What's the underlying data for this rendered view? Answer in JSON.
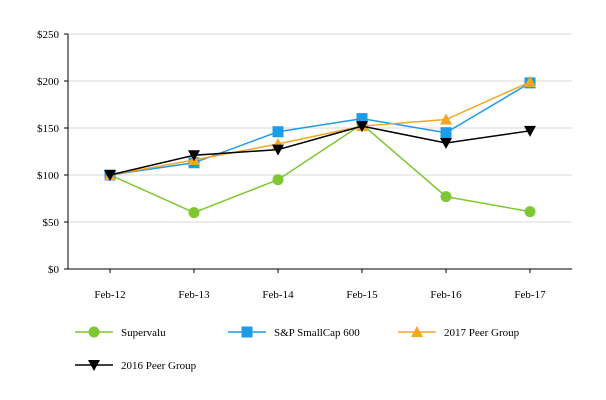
{
  "chart_data": {
    "type": "line",
    "title": "",
    "xlabel": "",
    "ylabel": "",
    "categories": [
      "Feb-12",
      "Feb-13",
      "Feb-14",
      "Feb-15",
      "Feb-16",
      "Feb-17"
    ],
    "ylim": [
      0,
      250
    ],
    "yticks": [
      0,
      50,
      100,
      150,
      200,
      250
    ],
    "ytick_labels": [
      "$0",
      "$50",
      "$100",
      "$150",
      "$200",
      "$250"
    ],
    "grid": true,
    "legend_position": "bottom",
    "series": [
      {
        "name": "Supervalu",
        "color": "#7dc832",
        "marker": "circle",
        "values": [
          100,
          60,
          95,
          154,
          77,
          61
        ]
      },
      {
        "name": "S&P SmallCap 600",
        "color": "#1e9be6",
        "marker": "square",
        "values": [
          100,
          113,
          146,
          160,
          145,
          198
        ]
      },
      {
        "name": "2017 Peer Group",
        "color": "#f5a623",
        "marker": "triangle-up",
        "values": [
          100,
          116,
          133,
          152,
          159,
          199
        ]
      },
      {
        "name": "2016 Peer Group",
        "color": "#000000",
        "marker": "triangle-down",
        "values": [
          100,
          121,
          127,
          152,
          134,
          147
        ]
      }
    ]
  }
}
